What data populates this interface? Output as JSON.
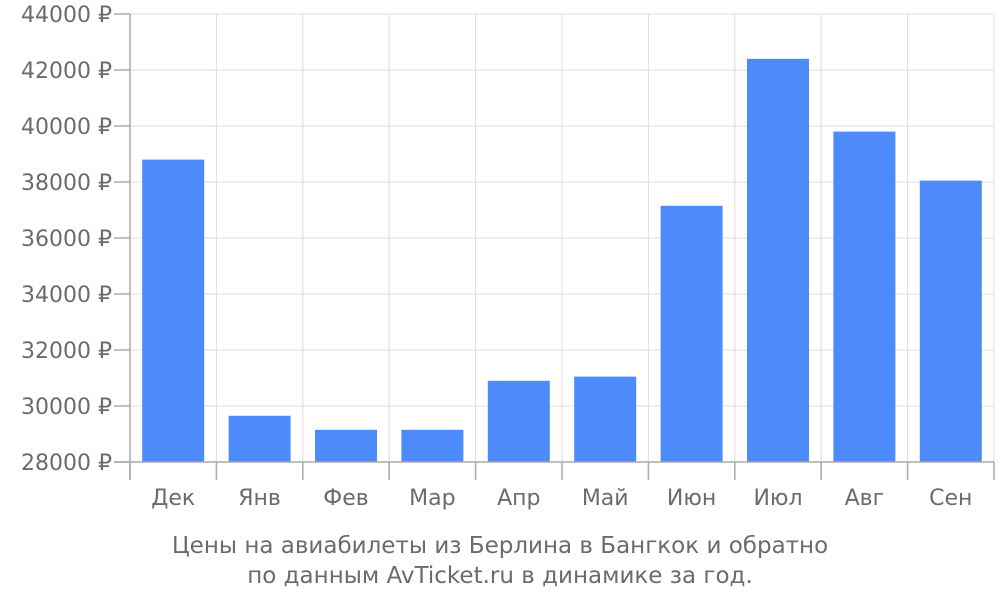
{
  "chart_data": {
    "type": "bar",
    "categories": [
      "Дек",
      "Янв",
      "Фев",
      "Мар",
      "Апр",
      "Май",
      "Июн",
      "Июл",
      "Авг",
      "Сен"
    ],
    "values": [
      38800,
      29650,
      29150,
      29150,
      30900,
      31050,
      37150,
      42400,
      39800,
      38050
    ],
    "ylim": [
      28000,
      44000
    ],
    "yticks": [
      28000,
      30000,
      32000,
      34000,
      36000,
      38000,
      40000,
      42000,
      44000
    ],
    "ytick_labels": [
      "28000 ₽",
      "30000 ₽",
      "32000 ₽",
      "34000 ₽",
      "36000 ₽",
      "38000 ₽",
      "40000 ₽",
      "42000 ₽",
      "44000 ₽"
    ],
    "grid": true,
    "bar_color": "#4d8bfa"
  },
  "caption": {
    "line1": "Цены на авиабилеты из Берлина в Бангкок и обратно",
    "line2": "по данным AvTicket.ru в динамике за год."
  }
}
